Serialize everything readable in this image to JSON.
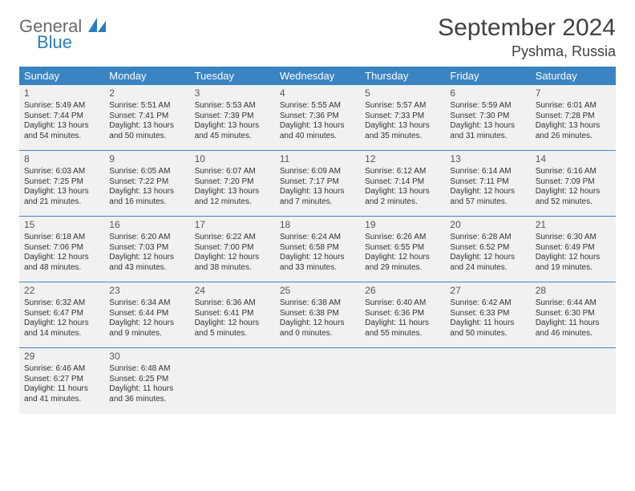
{
  "logo": {
    "word1": "General",
    "word2": "Blue"
  },
  "title": {
    "month": "September 2024",
    "location": "Pyshma, Russia"
  },
  "colors": {
    "header_bg": "#3a84c3",
    "header_text": "#ffffff",
    "cell_bg": "#f1f1f1",
    "border": "#3a84c3",
    "text": "#333333",
    "title_text": "#414141",
    "logo_gray": "#6a6a6a",
    "logo_blue": "#2a7dbb"
  },
  "daysOfWeek": [
    "Sunday",
    "Monday",
    "Tuesday",
    "Wednesday",
    "Thursday",
    "Friday",
    "Saturday"
  ],
  "startOffset": 0,
  "days": [
    {
      "n": 1,
      "sr": "5:49 AM",
      "ss": "7:44 PM",
      "dl": "13 hours and 54 minutes."
    },
    {
      "n": 2,
      "sr": "5:51 AM",
      "ss": "7:41 PM",
      "dl": "13 hours and 50 minutes."
    },
    {
      "n": 3,
      "sr": "5:53 AM",
      "ss": "7:39 PM",
      "dl": "13 hours and 45 minutes."
    },
    {
      "n": 4,
      "sr": "5:55 AM",
      "ss": "7:36 PM",
      "dl": "13 hours and 40 minutes."
    },
    {
      "n": 5,
      "sr": "5:57 AM",
      "ss": "7:33 PM",
      "dl": "13 hours and 35 minutes."
    },
    {
      "n": 6,
      "sr": "5:59 AM",
      "ss": "7:30 PM",
      "dl": "13 hours and 31 minutes."
    },
    {
      "n": 7,
      "sr": "6:01 AM",
      "ss": "7:28 PM",
      "dl": "13 hours and 26 minutes."
    },
    {
      "n": 8,
      "sr": "6:03 AM",
      "ss": "7:25 PM",
      "dl": "13 hours and 21 minutes."
    },
    {
      "n": 9,
      "sr": "6:05 AM",
      "ss": "7:22 PM",
      "dl": "13 hours and 16 minutes."
    },
    {
      "n": 10,
      "sr": "6:07 AM",
      "ss": "7:20 PM",
      "dl": "13 hours and 12 minutes."
    },
    {
      "n": 11,
      "sr": "6:09 AM",
      "ss": "7:17 PM",
      "dl": "13 hours and 7 minutes."
    },
    {
      "n": 12,
      "sr": "6:12 AM",
      "ss": "7:14 PM",
      "dl": "13 hours and 2 minutes."
    },
    {
      "n": 13,
      "sr": "6:14 AM",
      "ss": "7:11 PM",
      "dl": "12 hours and 57 minutes."
    },
    {
      "n": 14,
      "sr": "6:16 AM",
      "ss": "7:09 PM",
      "dl": "12 hours and 52 minutes."
    },
    {
      "n": 15,
      "sr": "6:18 AM",
      "ss": "7:06 PM",
      "dl": "12 hours and 48 minutes."
    },
    {
      "n": 16,
      "sr": "6:20 AM",
      "ss": "7:03 PM",
      "dl": "12 hours and 43 minutes."
    },
    {
      "n": 17,
      "sr": "6:22 AM",
      "ss": "7:00 PM",
      "dl": "12 hours and 38 minutes."
    },
    {
      "n": 18,
      "sr": "6:24 AM",
      "ss": "6:58 PM",
      "dl": "12 hours and 33 minutes."
    },
    {
      "n": 19,
      "sr": "6:26 AM",
      "ss": "6:55 PM",
      "dl": "12 hours and 29 minutes."
    },
    {
      "n": 20,
      "sr": "6:28 AM",
      "ss": "6:52 PM",
      "dl": "12 hours and 24 minutes."
    },
    {
      "n": 21,
      "sr": "6:30 AM",
      "ss": "6:49 PM",
      "dl": "12 hours and 19 minutes."
    },
    {
      "n": 22,
      "sr": "6:32 AM",
      "ss": "6:47 PM",
      "dl": "12 hours and 14 minutes."
    },
    {
      "n": 23,
      "sr": "6:34 AM",
      "ss": "6:44 PM",
      "dl": "12 hours and 9 minutes."
    },
    {
      "n": 24,
      "sr": "6:36 AM",
      "ss": "6:41 PM",
      "dl": "12 hours and 5 minutes."
    },
    {
      "n": 25,
      "sr": "6:38 AM",
      "ss": "6:38 PM",
      "dl": "12 hours and 0 minutes."
    },
    {
      "n": 26,
      "sr": "6:40 AM",
      "ss": "6:36 PM",
      "dl": "11 hours and 55 minutes."
    },
    {
      "n": 27,
      "sr": "6:42 AM",
      "ss": "6:33 PM",
      "dl": "11 hours and 50 minutes."
    },
    {
      "n": 28,
      "sr": "6:44 AM",
      "ss": "6:30 PM",
      "dl": "11 hours and 46 minutes."
    },
    {
      "n": 29,
      "sr": "6:46 AM",
      "ss": "6:27 PM",
      "dl": "11 hours and 41 minutes."
    },
    {
      "n": 30,
      "sr": "6:48 AM",
      "ss": "6:25 PM",
      "dl": "11 hours and 36 minutes."
    }
  ],
  "labels": {
    "sunrise": "Sunrise:",
    "sunset": "Sunset:",
    "daylight": "Daylight:"
  }
}
